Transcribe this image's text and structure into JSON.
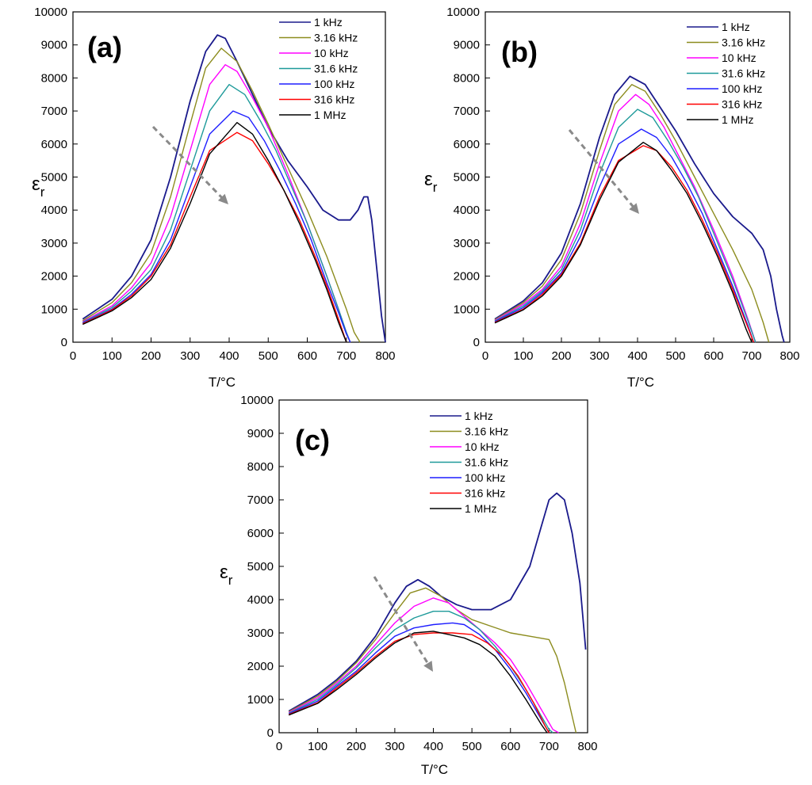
{
  "chart_data": [
    {
      "type": "line",
      "panel_label": "(a)",
      "xlabel": "T/°C",
      "ylabel": "εr",
      "xlim": [
        0,
        800
      ],
      "ylim": [
        0,
        10000
      ],
      "xticks": [
        0,
        100,
        200,
        300,
        400,
        500,
        600,
        700,
        800
      ],
      "yticks": [
        0,
        1000,
        2000,
        3000,
        4000,
        5000,
        6000,
        7000,
        8000,
        9000,
        10000
      ],
      "grid": false,
      "legend_position": "top-right",
      "annotation": "dashed arrow indicating increasing frequency",
      "series": [
        {
          "name": "1 kHz",
          "color": "#1a1a8c",
          "x": [
            25,
            100,
            150,
            200,
            250,
            300,
            340,
            370,
            390,
            420,
            460,
            500,
            550,
            600,
            640,
            680,
            710,
            730,
            745,
            755,
            765,
            780,
            790,
            800
          ],
          "y": [
            700,
            1300,
            2000,
            3100,
            5000,
            7300,
            8800,
            9300,
            9200,
            8500,
            7500,
            6500,
            5500,
            4700,
            4000,
            3700,
            3700,
            4000,
            4400,
            4400,
            3700,
            2000,
            800,
            0
          ]
        },
        {
          "name": "3.16 kHz",
          "color": "#8c8c1e",
          "x": [
            25,
            100,
            150,
            200,
            250,
            300,
            340,
            380,
            420,
            460,
            500,
            550,
            600,
            650,
            700,
            720,
            735
          ],
          "y": [
            650,
            1200,
            1800,
            2700,
            4400,
            6600,
            8300,
            8900,
            8500,
            7600,
            6600,
            5300,
            4000,
            2600,
            1000,
            300,
            0
          ]
        },
        {
          "name": "10 kHz",
          "color": "#ff00ff",
          "x": [
            25,
            100,
            150,
            200,
            250,
            300,
            350,
            390,
            420,
            460,
            500,
            550,
            600,
            650,
            680,
            700,
            710
          ],
          "y": [
            620,
            1100,
            1650,
            2400,
            3800,
            5800,
            7800,
            8400,
            8200,
            7400,
            6500,
            5100,
            3600,
            2000,
            1000,
            300,
            0
          ]
        },
        {
          "name": "31.6 kHz",
          "color": "#1e9a9a",
          "x": [
            25,
            100,
            150,
            200,
            250,
            300,
            350,
            400,
            440,
            480,
            520,
            560,
            600,
            650,
            680,
            700,
            710
          ],
          "y": [
            600,
            1050,
            1550,
            2200,
            3400,
            5200,
            7000,
            7800,
            7500,
            6700,
            5800,
            4700,
            3600,
            2000,
            1000,
            300,
            0
          ]
        },
        {
          "name": "100 kHz",
          "color": "#1e1eff",
          "x": [
            25,
            100,
            150,
            200,
            250,
            300,
            350,
            410,
            450,
            490,
            530,
            570,
            610,
            650,
            680,
            700,
            710
          ],
          "y": [
            580,
            1000,
            1450,
            2050,
            3100,
            4700,
            6300,
            7000,
            6800,
            6100,
            5200,
            4200,
            3100,
            1800,
            900,
            250,
            0
          ]
        },
        {
          "name": "316 kHz",
          "color": "#ff0000",
          "x": [
            25,
            100,
            150,
            200,
            250,
            300,
            350,
            420,
            460,
            500,
            540,
            580,
            620,
            650,
            680,
            700
          ],
          "y": [
            560,
            980,
            1400,
            2000,
            2950,
            4400,
            5800,
            6350,
            6100,
            5400,
            4600,
            3700,
            2600,
            1700,
            700,
            0
          ]
        },
        {
          "name": "1 MHz",
          "color": "#000000",
          "x": [
            25,
            100,
            150,
            200,
            250,
            300,
            350,
            420,
            460,
            500,
            540,
            580,
            620,
            650,
            680,
            700
          ],
          "y": [
            540,
            950,
            1350,
            1900,
            2850,
            4200,
            5700,
            6650,
            6300,
            5500,
            4600,
            3600,
            2500,
            1600,
            600,
            0
          ]
        }
      ]
    },
    {
      "type": "line",
      "panel_label": "(b)",
      "xlabel": "T/°C",
      "ylabel": "εr",
      "xlim": [
        0,
        800
      ],
      "ylim": [
        0,
        10000
      ],
      "xticks": [
        0,
        100,
        200,
        300,
        400,
        500,
        600,
        700,
        800
      ],
      "yticks": [
        0,
        1000,
        2000,
        3000,
        4000,
        5000,
        6000,
        7000,
        8000,
        9000,
        10000
      ],
      "grid": false,
      "legend_position": "top-right",
      "annotation": "dashed arrow indicating increasing frequency",
      "series": [
        {
          "name": "1 kHz",
          "color": "#1a1a8c",
          "x": [
            25,
            100,
            150,
            200,
            250,
            300,
            340,
            380,
            420,
            460,
            500,
            550,
            600,
            650,
            700,
            730,
            750,
            765,
            780,
            785
          ],
          "y": [
            700,
            1250,
            1800,
            2700,
            4200,
            6200,
            7500,
            8050,
            7800,
            7100,
            6400,
            5400,
            4500,
            3800,
            3300,
            2800,
            2000,
            1000,
            200,
            0
          ]
        },
        {
          "name": "3.16 kHz",
          "color": "#8c8c1e",
          "x": [
            25,
            100,
            150,
            200,
            250,
            300,
            340,
            385,
            420,
            460,
            500,
            550,
            600,
            650,
            700,
            730,
            745
          ],
          "y": [
            680,
            1200,
            1700,
            2500,
            3900,
            5800,
            7200,
            7800,
            7600,
            6900,
            6100,
            5000,
            3900,
            2800,
            1600,
            600,
            0
          ]
        },
        {
          "name": "10 kHz",
          "color": "#ff00ff",
          "x": [
            25,
            100,
            150,
            200,
            250,
            300,
            350,
            395,
            430,
            470,
            510,
            550,
            600,
            650,
            690,
            710
          ],
          "y": [
            660,
            1150,
            1600,
            2300,
            3600,
            5400,
            7000,
            7500,
            7200,
            6500,
            5600,
            4700,
            3400,
            2000,
            700,
            0
          ]
        },
        {
          "name": "31.6 kHz",
          "color": "#1e9a9a",
          "x": [
            25,
            100,
            150,
            200,
            250,
            300,
            350,
            400,
            440,
            480,
            520,
            560,
            600,
            650,
            690,
            710
          ],
          "y": [
            640,
            1100,
            1550,
            2200,
            3400,
            5100,
            6500,
            7050,
            6800,
            6100,
            5300,
            4400,
            3300,
            1900,
            650,
            0
          ]
        },
        {
          "name": "100 kHz",
          "color": "#1e1eff",
          "x": [
            25,
            100,
            150,
            200,
            250,
            300,
            350,
            410,
            450,
            490,
            530,
            570,
            610,
            650,
            690,
            705
          ],
          "y": [
            620,
            1050,
            1500,
            2100,
            3200,
            4700,
            6000,
            6450,
            6200,
            5600,
            4800,
            3900,
            2800,
            1700,
            500,
            0
          ]
        },
        {
          "name": "316 kHz",
          "color": "#ff0000",
          "x": [
            25,
            100,
            150,
            200,
            250,
            300,
            350,
            415,
            450,
            490,
            530,
            570,
            610,
            650,
            690,
            705
          ],
          "y": [
            600,
            1000,
            1450,
            2050,
            3000,
            4400,
            5500,
            5950,
            5800,
            5300,
            4600,
            3700,
            2700,
            1600,
            450,
            0
          ]
        },
        {
          "name": "1 MHz",
          "color": "#000000",
          "x": [
            25,
            100,
            150,
            200,
            250,
            300,
            350,
            415,
            450,
            490,
            530,
            570,
            610,
            650,
            685,
            700
          ],
          "y": [
            580,
            980,
            1400,
            2000,
            2950,
            4300,
            5450,
            6050,
            5800,
            5200,
            4500,
            3600,
            2600,
            1500,
            400,
            0
          ]
        }
      ]
    },
    {
      "type": "line",
      "panel_label": "(c)",
      "xlabel": "T/°C",
      "ylabel": "εr",
      "xlim": [
        0,
        800
      ],
      "ylim": [
        0,
        10000
      ],
      "xticks": [
        0,
        100,
        200,
        300,
        400,
        500,
        600,
        700,
        800
      ],
      "yticks": [
        0,
        1000,
        2000,
        3000,
        4000,
        5000,
        6000,
        7000,
        8000,
        9000,
        10000
      ],
      "grid": false,
      "legend_position": "top-center",
      "annotation": "dashed arrow indicating increasing frequency",
      "series": [
        {
          "name": "1 kHz",
          "color": "#1a1a8c",
          "x": [
            25,
            100,
            150,
            200,
            250,
            300,
            330,
            360,
            390,
            420,
            460,
            500,
            550,
            600,
            650,
            680,
            700,
            720,
            740,
            760,
            780,
            795
          ],
          "y": [
            650,
            1150,
            1600,
            2150,
            2900,
            3900,
            4400,
            4600,
            4400,
            4100,
            3850,
            3700,
            3700,
            4000,
            5000,
            6200,
            7000,
            7200,
            7000,
            6000,
            4500,
            2500
          ]
        },
        {
          "name": "3.16 kHz",
          "color": "#8c8c1e",
          "x": [
            25,
            100,
            150,
            200,
            250,
            300,
            340,
            380,
            420,
            460,
            500,
            550,
            600,
            650,
            700,
            720,
            740,
            760,
            770
          ],
          "y": [
            630,
            1100,
            1550,
            2100,
            2800,
            3600,
            4200,
            4350,
            4100,
            3700,
            3400,
            3200,
            3000,
            2900,
            2800,
            2300,
            1500,
            500,
            0
          ]
        },
        {
          "name": "10 kHz",
          "color": "#ff00ff",
          "x": [
            25,
            100,
            150,
            200,
            250,
            300,
            350,
            400,
            440,
            480,
            520,
            560,
            600,
            640,
            680,
            710,
            725
          ],
          "y": [
            610,
            1050,
            1500,
            2000,
            2650,
            3300,
            3800,
            4050,
            3900,
            3500,
            3100,
            2700,
            2200,
            1500,
            700,
            100,
            0
          ]
        },
        {
          "name": "31.6 kHz",
          "color": "#1e9a9a",
          "x": [
            25,
            100,
            150,
            200,
            250,
            300,
            350,
            400,
            440,
            480,
            520,
            560,
            600,
            640,
            680,
            700,
            710
          ],
          "y": [
            590,
            1000,
            1450,
            1950,
            2550,
            3100,
            3450,
            3650,
            3650,
            3450,
            3100,
            2600,
            2000,
            1300,
            500,
            100,
            0
          ]
        },
        {
          "name": "100 kHz",
          "color": "#1e1eff",
          "x": [
            25,
            100,
            150,
            200,
            250,
            300,
            350,
            400,
            450,
            480,
            520,
            560,
            600,
            640,
            680,
            700
          ],
          "y": [
            570,
            950,
            1400,
            1850,
            2400,
            2900,
            3150,
            3250,
            3300,
            3250,
            2950,
            2500,
            1900,
            1200,
            400,
            0
          ]
        },
        {
          "name": "316 kHz",
          "color": "#ff0000",
          "x": [
            25,
            100,
            150,
            200,
            250,
            300,
            350,
            400,
            450,
            500,
            540,
            580,
            620,
            660,
            690,
            700
          ],
          "y": [
            550,
            900,
            1350,
            1800,
            2300,
            2750,
            2950,
            3000,
            3000,
            2950,
            2700,
            2300,
            1700,
            900,
            200,
            0
          ]
        },
        {
          "name": "1 MHz",
          "color": "#000000",
          "x": [
            25,
            100,
            150,
            200,
            250,
            300,
            350,
            400,
            440,
            480,
            520,
            560,
            600,
            640,
            680,
            695
          ],
          "y": [
            530,
            880,
            1300,
            1750,
            2250,
            2700,
            3000,
            3050,
            2950,
            2850,
            2650,
            2300,
            1700,
            1000,
            250,
            0
          ]
        }
      ]
    }
  ]
}
